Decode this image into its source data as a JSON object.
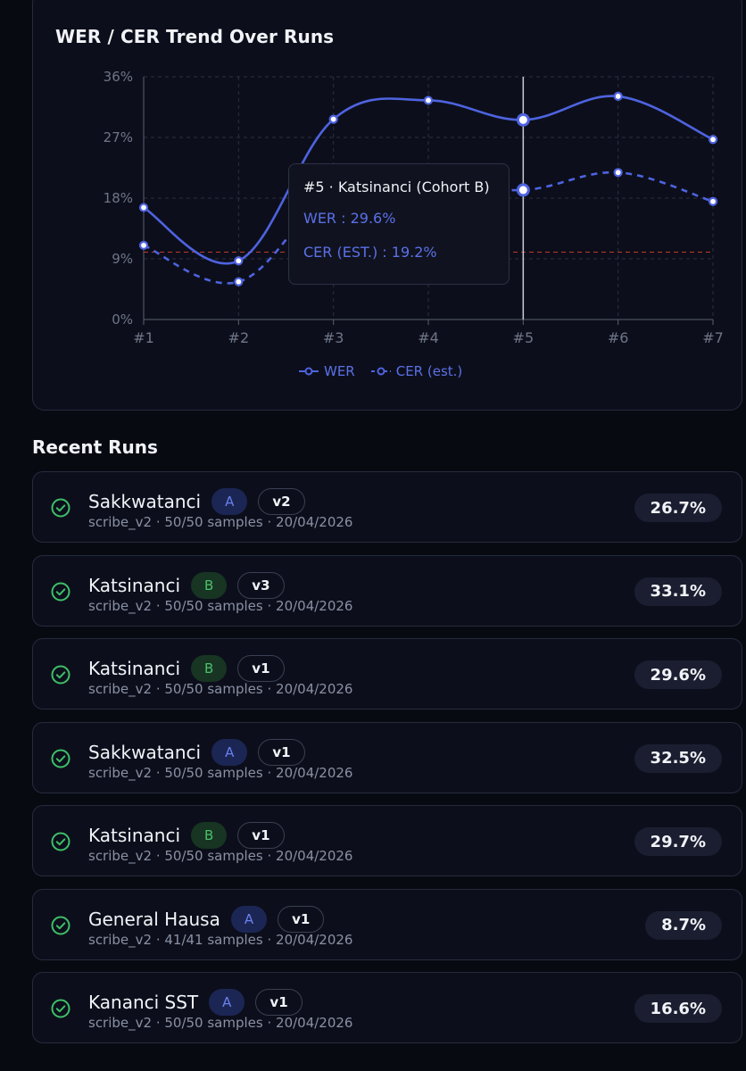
{
  "chart": {
    "title": "WER / CER Trend Over Runs",
    "tooltip": {
      "title": "#5 · Katsinanci (Cohort B)",
      "wer_line": "WER : 29.6%",
      "cer_line": "CER (EST.) : 19.2%"
    },
    "legend": [
      "WER",
      "CER (est.)"
    ]
  },
  "chart_data": {
    "type": "line",
    "categories": [
      "#1",
      "#2",
      "#3",
      "#4",
      "#5",
      "#6",
      "#7"
    ],
    "y_ticks": [
      "0%",
      "9%",
      "18%",
      "27%",
      "36%"
    ],
    "ylim": [
      0,
      36
    ],
    "reference_line": 10,
    "highlight_index": 4,
    "series": [
      {
        "name": "WER",
        "values": [
          16.6,
          8.7,
          29.7,
          32.5,
          29.6,
          33.1,
          26.7
        ],
        "style": "solid",
        "color": "#4e63e0"
      },
      {
        "name": "CER (est.)",
        "values": [
          11.0,
          5.6,
          19.0,
          20.5,
          19.2,
          21.8,
          17.5
        ],
        "style": "dashed",
        "color": "#4e63e0"
      }
    ],
    "grid": true,
    "legend_position": "bottom-center"
  },
  "recent_runs": {
    "title": "Recent Runs",
    "items": [
      {
        "name": "Sakkwatanci",
        "cohort": "A",
        "version": "v2",
        "meta": "scribe_v2 · 50/50 samples · 20/04/2026",
        "score": "26.7%"
      },
      {
        "name": "Katsinanci",
        "cohort": "B",
        "version": "v3",
        "meta": "scribe_v2 · 50/50 samples · 20/04/2026",
        "score": "33.1%"
      },
      {
        "name": "Katsinanci",
        "cohort": "B",
        "version": "v1",
        "meta": "scribe_v2 · 50/50 samples · 20/04/2026",
        "score": "29.6%"
      },
      {
        "name": "Sakkwatanci",
        "cohort": "A",
        "version": "v1",
        "meta": "scribe_v2 · 50/50 samples · 20/04/2026",
        "score": "32.5%"
      },
      {
        "name": "Katsinanci",
        "cohort": "B",
        "version": "v1",
        "meta": "scribe_v2 · 50/50 samples · 20/04/2026",
        "score": "29.7%"
      },
      {
        "name": "General Hausa",
        "cohort": "A",
        "version": "v1",
        "meta": "scribe_v2 · 41/41 samples · 20/04/2026",
        "score": "8.7%"
      },
      {
        "name": "Kananci SST",
        "cohort": "A",
        "version": "v1",
        "meta": "scribe_v2 · 50/50 samples · 20/04/2026",
        "score": "16.6%"
      }
    ]
  },
  "colors": {
    "accent": "#4e63e0",
    "success": "#3fbf68",
    "cohort_a": "#6a80f0",
    "cohort_b": "#4cbf6b",
    "reference": "#c0392b"
  }
}
